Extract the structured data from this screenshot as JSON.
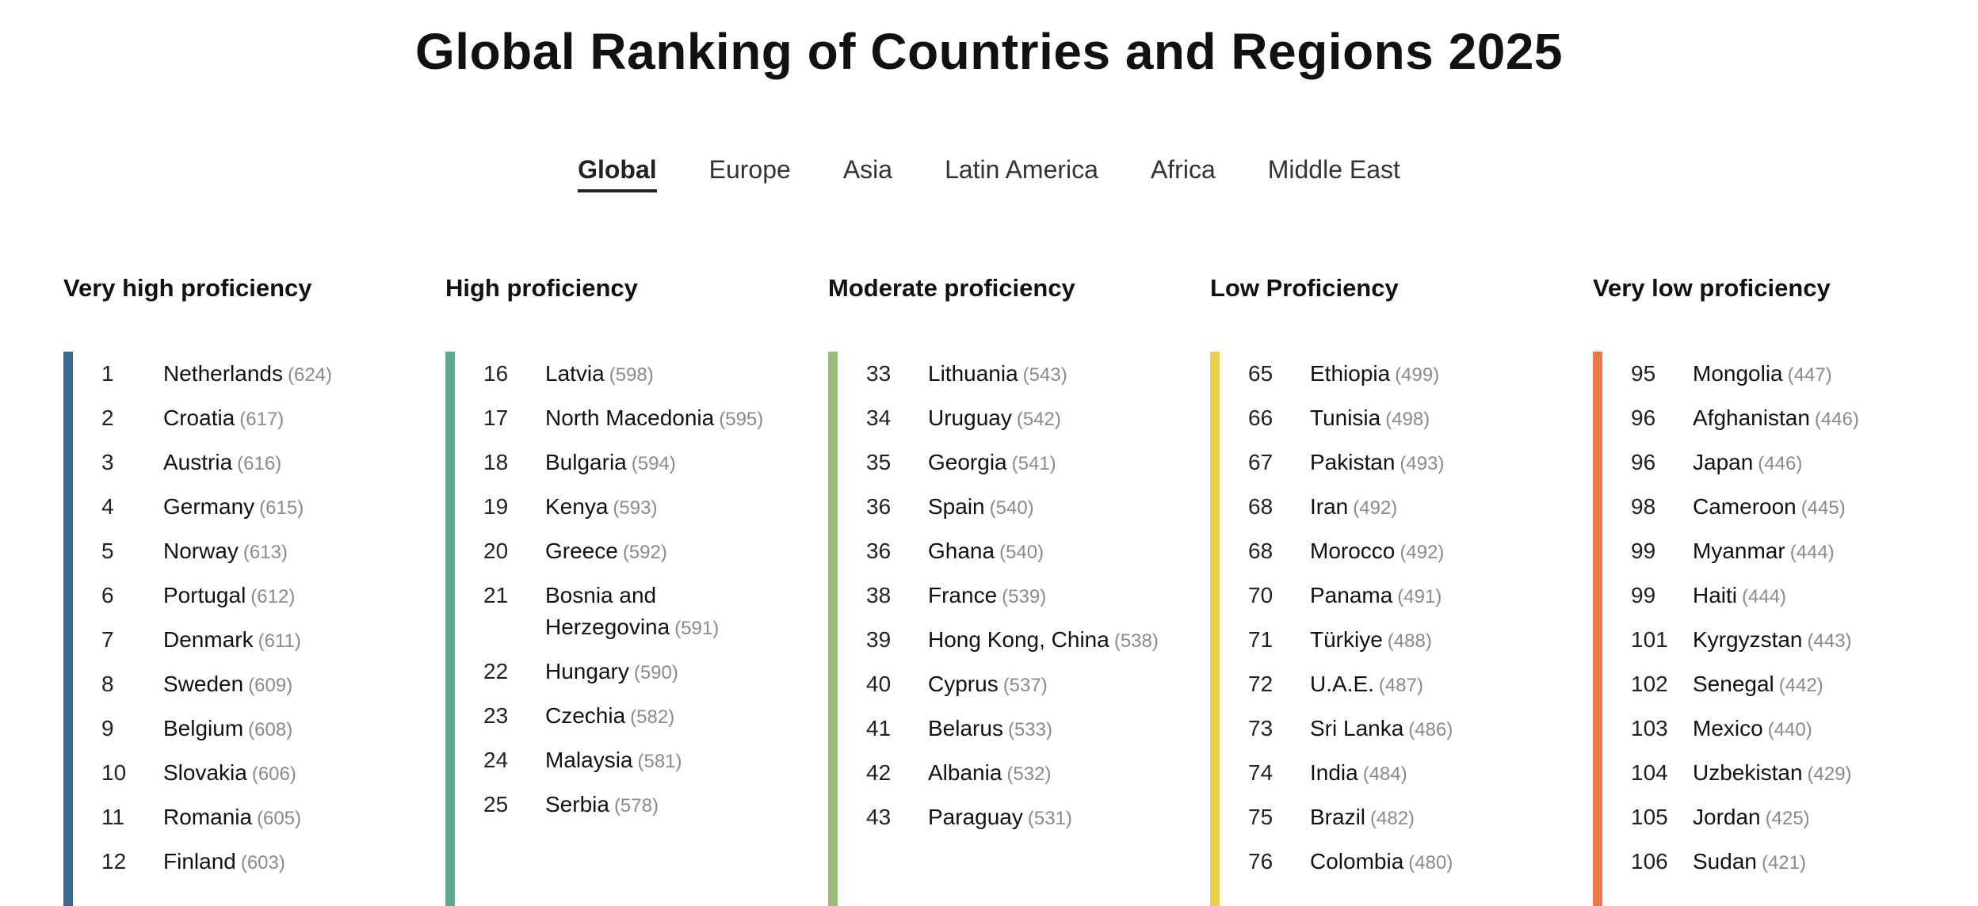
{
  "page": {
    "title": "Global Ranking of Countries and Regions 2025"
  },
  "tabs": [
    {
      "label": "Global",
      "active": true
    },
    {
      "label": "Europe",
      "active": false
    },
    {
      "label": "Asia",
      "active": false
    },
    {
      "label": "Latin America",
      "active": false
    },
    {
      "label": "Africa",
      "active": false
    },
    {
      "label": "Middle East",
      "active": false
    }
  ],
  "columns": [
    {
      "title": "Very high proficiency",
      "color": "#3b6a8f",
      "items": [
        {
          "rank": "1",
          "name": "Netherlands",
          "score": "(624)"
        },
        {
          "rank": "2",
          "name": "Croatia",
          "score": "(617)"
        },
        {
          "rank": "3",
          "name": "Austria",
          "score": "(616)"
        },
        {
          "rank": "4",
          "name": "Germany",
          "score": "(615)"
        },
        {
          "rank": "5",
          "name": "Norway",
          "score": "(613)"
        },
        {
          "rank": "6",
          "name": "Portugal",
          "score": "(612)"
        },
        {
          "rank": "7",
          "name": "Denmark",
          "score": "(611)"
        },
        {
          "rank": "8",
          "name": "Sweden",
          "score": "(609)"
        },
        {
          "rank": "9",
          "name": "Belgium",
          "score": "(608)"
        },
        {
          "rank": "10",
          "name": "Slovakia",
          "score": "(606)"
        },
        {
          "rank": "11",
          "name": "Romania",
          "score": "(605)"
        },
        {
          "rank": "12",
          "name": "Finland",
          "score": "(603)"
        }
      ]
    },
    {
      "title": "High proficiency",
      "color": "#5aab8f",
      "items": [
        {
          "rank": "16",
          "name": "Latvia",
          "score": "(598)"
        },
        {
          "rank": "17",
          "name": "North Macedonia",
          "score": "(595)"
        },
        {
          "rank": "18",
          "name": "Bulgaria",
          "score": "(594)"
        },
        {
          "rank": "19",
          "name": "Kenya",
          "score": "(593)"
        },
        {
          "rank": "20",
          "name": "Greece",
          "score": "(592)"
        },
        {
          "rank": "21",
          "name": "Bosnia and Herzegovina",
          "score": "(591)"
        },
        {
          "rank": "22",
          "name": "Hungary",
          "score": "(590)"
        },
        {
          "rank": "23",
          "name": "Czechia",
          "score": "(582)"
        },
        {
          "rank": "24",
          "name": "Malaysia",
          "score": "(581)"
        },
        {
          "rank": "25",
          "name": "Serbia",
          "score": "(578)"
        }
      ]
    },
    {
      "title": "Moderate proficiency",
      "color": "#9dba7d",
      "items": [
        {
          "rank": "33",
          "name": "Lithuania",
          "score": "(543)"
        },
        {
          "rank": "34",
          "name": "Uruguay",
          "score": "(542)"
        },
        {
          "rank": "35",
          "name": "Georgia",
          "score": "(541)"
        },
        {
          "rank": "36",
          "name": "Spain",
          "score": "(540)"
        },
        {
          "rank": "36",
          "name": "Ghana",
          "score": "(540)"
        },
        {
          "rank": "38",
          "name": "France",
          "score": "(539)"
        },
        {
          "rank": "39",
          "name": "Hong Kong, China",
          "score": "(538)"
        },
        {
          "rank": "40",
          "name": "Cyprus",
          "score": "(537)"
        },
        {
          "rank": "41",
          "name": "Belarus",
          "score": "(533)"
        },
        {
          "rank": "42",
          "name": "Albania",
          "score": "(532)"
        },
        {
          "rank": "43",
          "name": "Paraguay",
          "score": "(531)"
        }
      ]
    },
    {
      "title": "Low Proficiency",
      "color": "#e9cf4f",
      "items": [
        {
          "rank": "65",
          "name": "Ethiopia",
          "score": "(499)"
        },
        {
          "rank": "66",
          "name": "Tunisia",
          "score": "(498)"
        },
        {
          "rank": "67",
          "name": "Pakistan",
          "score": "(493)"
        },
        {
          "rank": "68",
          "name": "Iran",
          "score": "(492)"
        },
        {
          "rank": "68",
          "name": "Morocco",
          "score": "(492)"
        },
        {
          "rank": "70",
          "name": "Panama",
          "score": "(491)"
        },
        {
          "rank": "71",
          "name": "Türkiye",
          "score": "(488)"
        },
        {
          "rank": "72",
          "name": "U.A.E.",
          "score": "(487)"
        },
        {
          "rank": "73",
          "name": "Sri Lanka",
          "score": "(486)"
        },
        {
          "rank": "74",
          "name": "India",
          "score": "(484)"
        },
        {
          "rank": "75",
          "name": "Brazil",
          "score": "(482)"
        },
        {
          "rank": "76",
          "name": "Colombia",
          "score": "(480)"
        }
      ]
    },
    {
      "title": "Very low proficiency",
      "color": "#e8774a",
      "items": [
        {
          "rank": "95",
          "name": "Mongolia",
          "score": "(447)"
        },
        {
          "rank": "96",
          "name": "Afghanistan",
          "score": "(446)"
        },
        {
          "rank": "96",
          "name": "Japan",
          "score": "(446)"
        },
        {
          "rank": "98",
          "name": "Cameroon",
          "score": "(445)"
        },
        {
          "rank": "99",
          "name": "Myanmar",
          "score": "(444)"
        },
        {
          "rank": "99",
          "name": "Haiti",
          "score": "(444)"
        },
        {
          "rank": "101",
          "name": "Kyrgyzstan",
          "score": "(443)"
        },
        {
          "rank": "102",
          "name": "Senegal",
          "score": "(442)"
        },
        {
          "rank": "103",
          "name": "Mexico",
          "score": "(440)"
        },
        {
          "rank": "104",
          "name": "Uzbekistan",
          "score": "(429)"
        },
        {
          "rank": "105",
          "name": "Jordan",
          "score": "(425)"
        },
        {
          "rank": "106",
          "name": "Sudan",
          "score": "(421)"
        }
      ]
    }
  ]
}
